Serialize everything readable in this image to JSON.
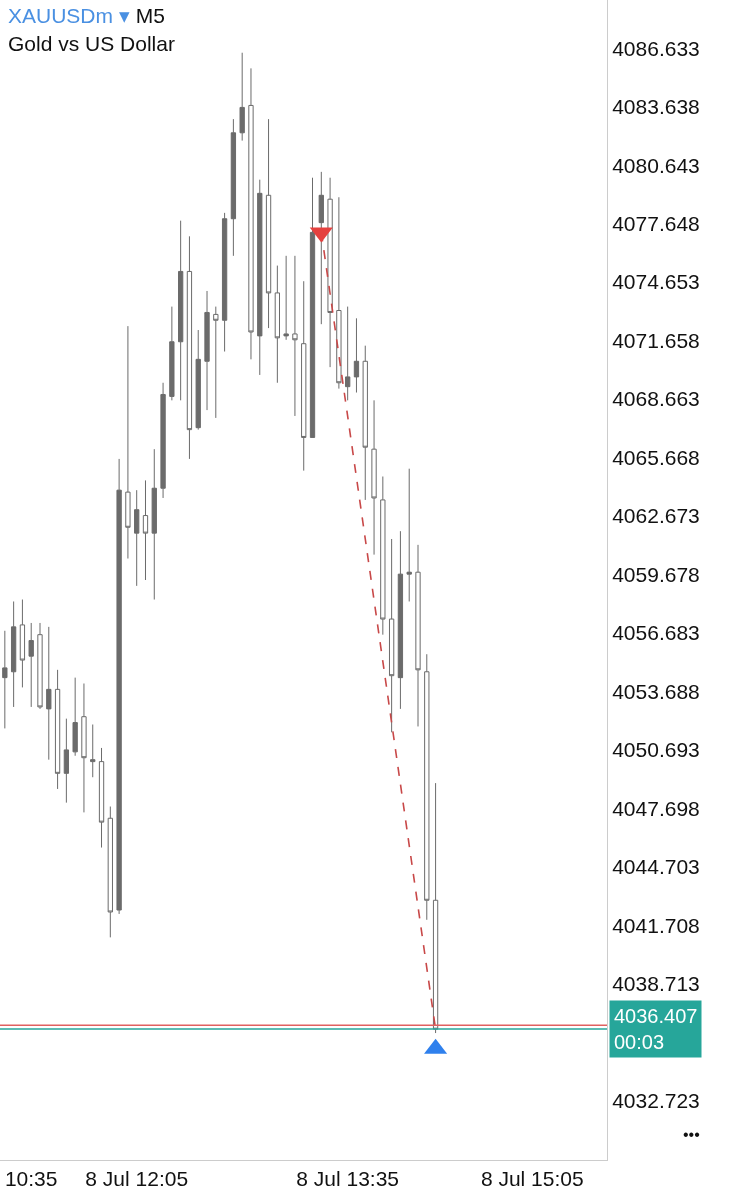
{
  "chart_data": {
    "type": "candlestick",
    "title": "XAUUSDm ▾ M5",
    "subtitle": "Gold vs US Dollar",
    "categories": [
      null,
      null,
      null,
      "10:35",
      null,
      null,
      null,
      null,
      null,
      null,
      null,
      null,
      null,
      null,
      null,
      "8 Jul 12:05",
      null,
      null,
      null,
      null,
      null,
      null,
      null,
      null,
      null,
      null,
      null,
      null,
      null,
      null,
      null,
      null,
      null,
      null,
      null,
      null,
      null,
      null,
      null,
      "8 Jul 13:35",
      null,
      null,
      null,
      null,
      null,
      null,
      null,
      null,
      null,
      null,
      null,
      null,
      null,
      null,
      null,
      null,
      null,
      null,
      null,
      null,
      "8 Jul 15:05",
      null,
      null,
      null,
      null,
      null,
      null,
      null,
      null
    ],
    "series": [
      {
        "color": "#6b6b6b",
        "ohlc": [
          [
            4054.4,
            4056.8,
            4051.8,
            4054.9
          ],
          [
            4054.7,
            4058.3,
            4052.9,
            4057.0
          ],
          [
            4057.1,
            4058.4,
            4053.9,
            4055.3
          ],
          [
            4055.5,
            4057.2,
            4052.9,
            4056.3
          ],
          [
            4056.6,
            4057.2,
            4052.8,
            4052.9
          ],
          [
            4052.8,
            4057.0,
            4050.2,
            4053.8
          ],
          [
            4053.8,
            4054.8,
            4048.7,
            4049.5
          ],
          [
            4049.5,
            4052.3,
            4048.0,
            4050.7
          ],
          [
            4050.6,
            4054.4,
            4050.4,
            4052.1
          ],
          [
            4052.4,
            4054.1,
            4047.5,
            4050.3
          ],
          [
            4050.1,
            4052.0,
            4049.3,
            4050.2
          ],
          [
            4050.1,
            4050.8,
            4045.7,
            4047.0
          ],
          [
            4047.2,
            4047.8,
            4041.1,
            4042.4
          ],
          [
            4042.5,
            4065.6,
            4042.3,
            4064.0
          ],
          [
            4063.9,
            4072.4,
            4060.5,
            4062.1
          ],
          [
            4061.8,
            4064.0,
            4059.1,
            4063.0
          ],
          [
            4062.7,
            4064.5,
            4059.4,
            4061.8
          ],
          [
            4061.8,
            4066.1,
            4058.4,
            4064.1
          ],
          [
            4064.1,
            4069.5,
            4063.6,
            4068.9
          ],
          [
            4068.8,
            4073.4,
            4068.6,
            4071.6
          ],
          [
            4071.6,
            4077.8,
            4068.6,
            4075.2
          ],
          [
            4075.2,
            4077.0,
            4065.6,
            4067.1
          ],
          [
            4067.2,
            4072.2,
            4067.1,
            4070.7
          ],
          [
            4070.6,
            4074.2,
            4068.1,
            4073.1
          ],
          [
            4073.0,
            4073.4,
            4067.7,
            4072.7
          ],
          [
            4072.7,
            4078.2,
            4071.1,
            4077.9
          ],
          [
            4077.9,
            4083.0,
            4076.0,
            4082.3
          ],
          [
            4082.3,
            4086.4,
            4081.9,
            4083.6
          ],
          [
            4083.7,
            4085.6,
            4070.7,
            4072.1
          ],
          [
            4071.9,
            4079.9,
            4069.9,
            4079.2
          ],
          [
            4079.1,
            4083.0,
            4072.3,
            4074.1
          ],
          [
            4074.1,
            4075.5,
            4069.5,
            4071.8
          ],
          [
            4071.9,
            4076.0,
            4071.7,
            4072.0
          ],
          [
            4072.0,
            4076.0,
            4067.8,
            4071.7
          ],
          [
            4071.5,
            4074.7,
            4065.0,
            4066.7
          ],
          [
            4066.7,
            4080.0,
            4066.7,
            4077.2
          ],
          [
            4077.7,
            4080.3,
            4072.5,
            4079.1
          ],
          [
            4078.9,
            4080.0,
            4070.3,
            4073.1
          ],
          [
            4073.2,
            4079.0,
            4069.2,
            4069.5
          ],
          [
            4069.3,
            4073.4,
            4068.6,
            4069.8
          ],
          [
            4069.8,
            4072.8,
            4069.0,
            4070.6
          ],
          [
            4070.6,
            4071.4,
            4063.5,
            4066.2
          ],
          [
            4066.1,
            4068.6,
            4060.7,
            4063.6
          ],
          [
            4063.5,
            4064.7,
            4056.6,
            4057.4
          ],
          [
            4057.4,
            4061.5,
            4051.6,
            4054.5
          ],
          [
            4054.4,
            4061.9,
            4052.8,
            4059.7
          ],
          [
            4059.7,
            4065.1,
            4058.3,
            4059.8
          ],
          [
            4059.8,
            4061.2,
            4051.9,
            4054.8
          ],
          [
            4054.7,
            4055.6,
            4042.0,
            4043.0
          ],
          [
            4043.0,
            4049.0,
            4036.2,
            4036.4
          ],
          null,
          null,
          null,
          null,
          null,
          null,
          null,
          null,
          null,
          null,
          null,
          null,
          null,
          null,
          null,
          null,
          null,
          null,
          null
        ]
      },
      {
        "type": "line",
        "color": "#c84848",
        "line_style": "dashed",
        "marker": "none",
        "values": [
          null,
          null,
          null,
          null,
          null,
          null,
          null,
          null,
          null,
          null,
          null,
          null,
          null,
          null,
          null,
          null,
          null,
          null,
          null,
          null,
          null,
          null,
          null,
          null,
          null,
          null,
          null,
          null,
          null,
          null,
          null,
          null,
          null,
          null,
          null,
          null,
          4077.2,
          null,
          null,
          null,
          null,
          null,
          null,
          null,
          null,
          null,
          null,
          null,
          null,
          4036.4,
          null,
          null,
          null,
          null,
          null,
          null,
          null,
          null,
          null,
          null,
          null,
          null,
          null,
          null,
          null,
          null,
          null,
          null,
          null
        ]
      },
      {
        "type": "scatter",
        "color": "#e5413f",
        "marker": "triangle-down",
        "values": [
          null,
          null,
          null,
          null,
          null,
          null,
          null,
          null,
          null,
          null,
          null,
          null,
          null,
          null,
          null,
          null,
          null,
          null,
          null,
          null,
          null,
          null,
          null,
          null,
          null,
          null,
          null,
          null,
          null,
          null,
          null,
          null,
          null,
          null,
          null,
          null,
          4077.2,
          null,
          null,
          null,
          null,
          null,
          null,
          null,
          null,
          null,
          null,
          null,
          null,
          null,
          null,
          null,
          null,
          null,
          null,
          null,
          null,
          null,
          null,
          null,
          null,
          null,
          null,
          null,
          null,
          null,
          null,
          null,
          null
        ]
      },
      {
        "type": "scatter",
        "color": "#2f80ed",
        "marker": "triangle",
        "values": [
          null,
          null,
          null,
          null,
          null,
          null,
          null,
          null,
          null,
          null,
          null,
          null,
          null,
          null,
          null,
          null,
          null,
          null,
          null,
          null,
          null,
          null,
          null,
          null,
          null,
          null,
          null,
          null,
          null,
          null,
          null,
          null,
          null,
          null,
          null,
          null,
          null,
          null,
          null,
          null,
          null,
          null,
          null,
          null,
          null,
          null,
          null,
          null,
          null,
          4035.4,
          null,
          null,
          null,
          null,
          null,
          null,
          null,
          null,
          null,
          null,
          null,
          null,
          null,
          null,
          null,
          null,
          null,
          null,
          null
        ]
      }
    ],
    "ylim": [
      4029.7,
      4089.1
    ],
    "yticks": [
      4086.633,
      4083.638,
      4080.643,
      4077.648,
      4074.653,
      4071.658,
      4068.663,
      4065.668,
      4062.673,
      4059.678,
      4056.683,
      4053.688,
      4050.693,
      4047.698,
      4044.703,
      4041.708,
      4038.713,
      4032.723
    ],
    "ref_lines": [
      {
        "axis": "y",
        "value": 4036.6,
        "color": "#e06060"
      },
      {
        "axis": "y",
        "value": 4036.407,
        "label": "4036.407\n00:03",
        "color": "#26a69a"
      }
    ],
    "annotations": [
      "•••"
    ]
  }
}
